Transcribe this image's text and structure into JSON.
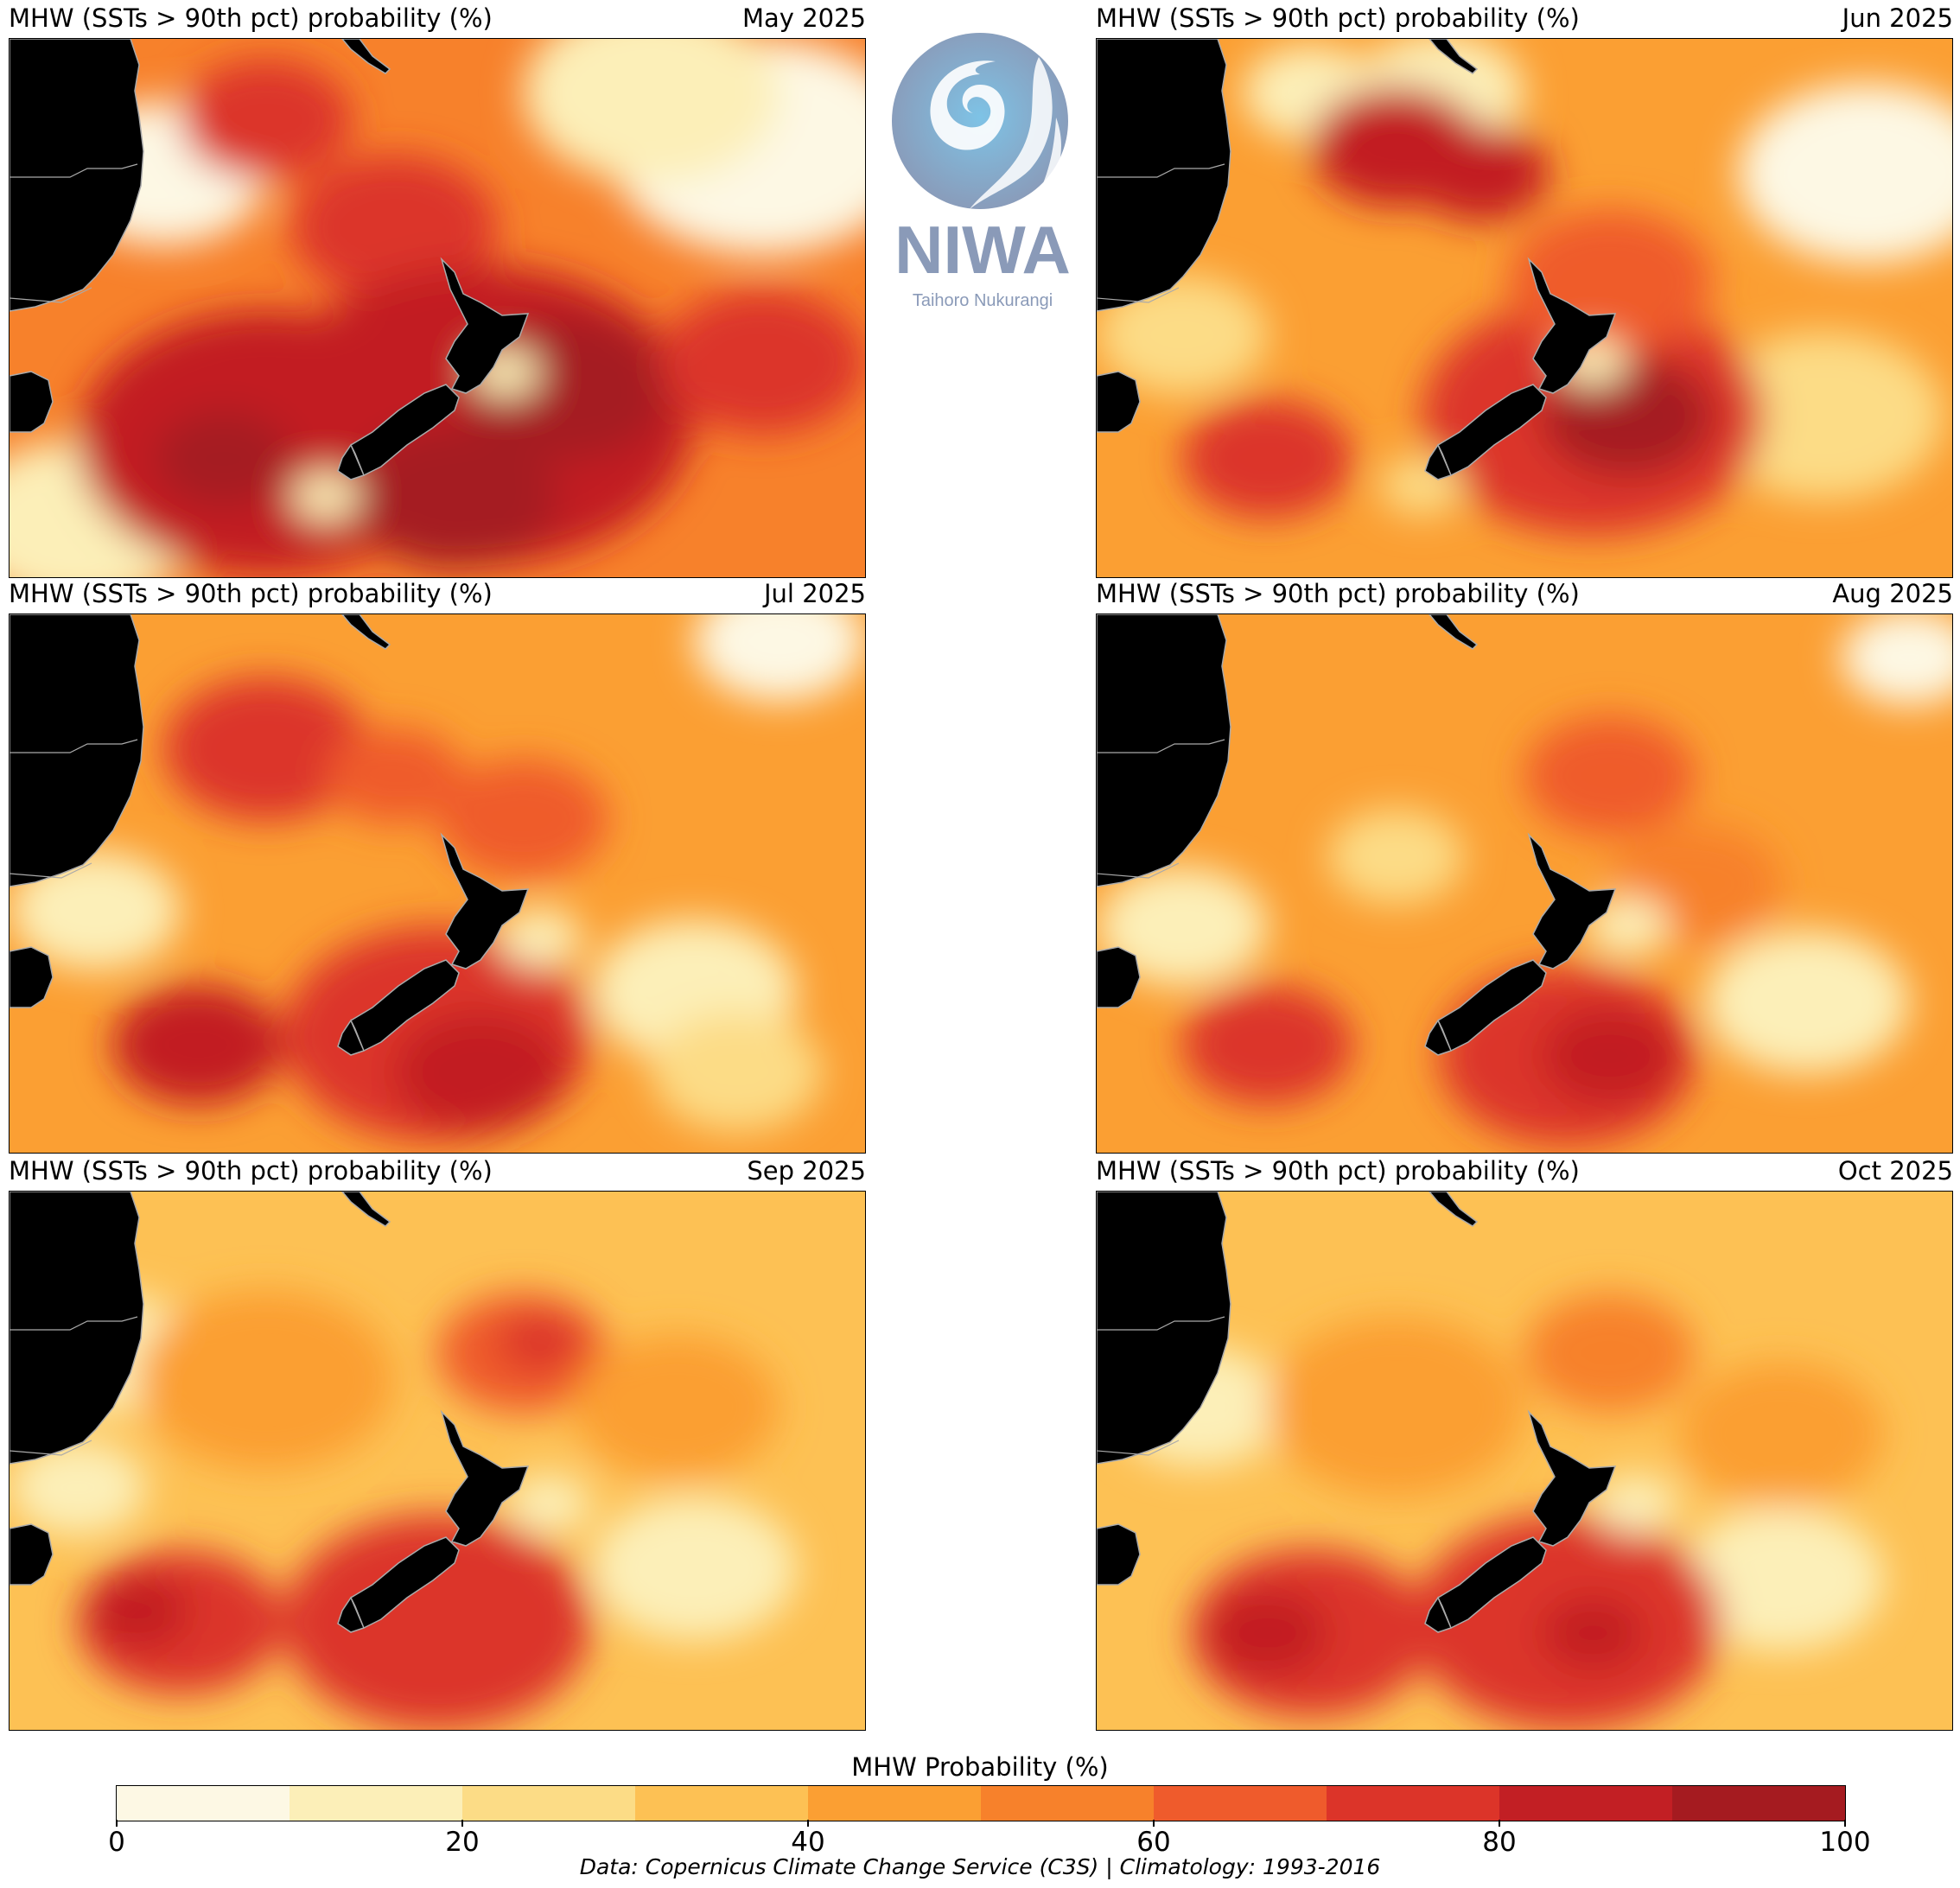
{
  "chart_data": {
    "type": "heatmap",
    "title": "MHW (SSTs > 90th pct) probability (%)",
    "colorbar": {
      "label": "MHW Probability (%)",
      "range": [
        0,
        100
      ],
      "levels": [
        0,
        10,
        20,
        30,
        40,
        50,
        60,
        70,
        80,
        90,
        100
      ],
      "ticks": [
        0,
        20,
        40,
        60,
        80,
        100
      ],
      "colors": [
        "#fdf8e4",
        "#fcefb8",
        "#fcdc86",
        "#fdc154",
        "#fb9f33",
        "#f7812b",
        "#ef5b2c",
        "#dc3429",
        "#c21f24",
        "#a51b20"
      ]
    },
    "region": "Tasman Sea / New Zealand / Southwest Pacific",
    "panels": [
      {
        "id": "may",
        "title": "MHW (SSTs > 90th pct) probability (%)",
        "month": "May 2025",
        "base": "#f7812b",
        "summary": "Widespread 70-100% south and east of NZ; 0-20% NW Tasman and far NE",
        "blobs": [
          [
            0.18,
            0.25,
            0.12,
            "#fdf8e4"
          ],
          [
            0.88,
            0.2,
            0.18,
            "#fdf8e4"
          ],
          [
            0.75,
            0.1,
            0.15,
            "#fcefb8"
          ],
          [
            0.08,
            0.9,
            0.14,
            "#fcefb8"
          ],
          [
            0.3,
            0.15,
            0.1,
            "#dc3429"
          ],
          [
            0.45,
            0.35,
            0.12,
            "#dc3429"
          ],
          [
            0.3,
            0.75,
            0.22,
            "#c21f24"
          ],
          [
            0.55,
            0.7,
            0.25,
            "#c21f24"
          ],
          [
            0.65,
            0.65,
            0.12,
            "#a51b20"
          ],
          [
            0.52,
            0.85,
            0.12,
            "#a51b20"
          ],
          [
            0.25,
            0.78,
            0.08,
            "#a51b20"
          ],
          [
            0.88,
            0.6,
            0.12,
            "#dc3429"
          ],
          [
            0.58,
            0.62,
            0.04,
            "#fcefb8"
          ],
          [
            0.37,
            0.85,
            0.04,
            "#fcefb8"
          ]
        ]
      },
      {
        "id": "jun",
        "title": "MHW (SSTs > 90th pct) probability (%)",
        "month": "Jun 2025",
        "base": "#fb9f33",
        "summary": "60-90% band south of NZ and NW Tasman; 0-30% east and NW",
        "blobs": [
          [
            0.9,
            0.25,
            0.15,
            "#fdf8e4"
          ],
          [
            0.25,
            0.1,
            0.08,
            "#fcefb8"
          ],
          [
            0.4,
            0.1,
            0.1,
            "#fcefb8"
          ],
          [
            0.1,
            0.55,
            0.1,
            "#fcdc86"
          ],
          [
            0.85,
            0.7,
            0.14,
            "#fcdc86"
          ],
          [
            0.35,
            0.2,
            0.1,
            "#c21f24"
          ],
          [
            0.45,
            0.25,
            0.08,
            "#c21f24"
          ],
          [
            0.58,
            0.7,
            0.2,
            "#dc3429"
          ],
          [
            0.62,
            0.7,
            0.1,
            "#a51b20"
          ],
          [
            0.2,
            0.78,
            0.1,
            "#dc3429"
          ],
          [
            0.6,
            0.45,
            0.12,
            "#ef5b2c"
          ],
          [
            0.58,
            0.6,
            0.04,
            "#fcefb8"
          ],
          [
            0.38,
            0.83,
            0.05,
            "#fcdc86"
          ]
        ]
      },
      {
        "id": "jul",
        "title": "MHW (SSTs > 90th pct) probability (%)",
        "month": "Jul 2025",
        "base": "#fb9f33",
        "summary": "60-80% south and west of NZ, central Tasman; 10-30% east of NZ and NE",
        "blobs": [
          [
            0.9,
            0.05,
            0.1,
            "#fdf8e4"
          ],
          [
            0.1,
            0.55,
            0.1,
            "#fcefb8"
          ],
          [
            0.8,
            0.7,
            0.12,
            "#fcefb8"
          ],
          [
            0.85,
            0.85,
            0.1,
            "#fcdc86"
          ],
          [
            0.3,
            0.25,
            0.12,
            "#dc3429"
          ],
          [
            0.45,
            0.3,
            0.08,
            "#ef5b2c"
          ],
          [
            0.6,
            0.38,
            0.1,
            "#ef5b2c"
          ],
          [
            0.5,
            0.78,
            0.18,
            "#dc3429"
          ],
          [
            0.22,
            0.8,
            0.1,
            "#c21f24"
          ],
          [
            0.55,
            0.85,
            0.1,
            "#c21f24"
          ],
          [
            0.62,
            0.6,
            0.05,
            "#fcefb8"
          ]
        ]
      },
      {
        "id": "aug",
        "title": "MHW (SSTs > 90th pct) probability (%)",
        "month": "Aug 2025",
        "base": "#fb9f33",
        "summary": "60-80% south of NZ; 10-30% east of NZ and Tasman coast",
        "blobs": [
          [
            0.95,
            0.08,
            0.08,
            "#fdf8e4"
          ],
          [
            0.1,
            0.58,
            0.1,
            "#fcefb8"
          ],
          [
            0.83,
            0.72,
            0.12,
            "#fcefb8"
          ],
          [
            0.35,
            0.45,
            0.08,
            "#fcdc86"
          ],
          [
            0.6,
            0.3,
            0.1,
            "#ef5b2c"
          ],
          [
            0.7,
            0.5,
            0.1,
            "#f7812b"
          ],
          [
            0.55,
            0.82,
            0.15,
            "#dc3429"
          ],
          [
            0.6,
            0.82,
            0.08,
            "#c21f24"
          ],
          [
            0.2,
            0.8,
            0.1,
            "#dc3429"
          ],
          [
            0.62,
            0.58,
            0.05,
            "#fcefb8"
          ]
        ]
      },
      {
        "id": "sep",
        "title": "MHW (SSTs > 90th pct) probability (%)",
        "month": "Sep 2025",
        "base": "#fdc154",
        "summary": "60-80% south of NZ and SW; 0-30% east of NZ and east Australian coast",
        "blobs": [
          [
            0.12,
            0.3,
            0.1,
            "#fcefb8"
          ],
          [
            0.08,
            0.55,
            0.08,
            "#fcefb8"
          ],
          [
            0.8,
            0.7,
            0.12,
            "#fcefb8"
          ],
          [
            0.6,
            0.3,
            0.1,
            "#ef5b2c"
          ],
          [
            0.62,
            0.28,
            0.05,
            "#dc3429"
          ],
          [
            0.3,
            0.35,
            0.15,
            "#fb9f33"
          ],
          [
            0.5,
            0.8,
            0.18,
            "#dc3429"
          ],
          [
            0.2,
            0.8,
            0.12,
            "#dc3429"
          ],
          [
            0.15,
            0.78,
            0.06,
            "#c21f24"
          ],
          [
            0.63,
            0.58,
            0.05,
            "#fcefb8"
          ],
          [
            0.78,
            0.4,
            0.12,
            "#fb9f33"
          ]
        ]
      },
      {
        "id": "oct",
        "title": "MHW (SSTs > 90th pct) probability (%)",
        "month": "Oct 2025",
        "base": "#fdc154",
        "summary": "70-80% south of NZ and SW; 10-30% east of NZ and Tasman coast",
        "blobs": [
          [
            0.12,
            0.4,
            0.1,
            "#fcefb8"
          ],
          [
            0.8,
            0.72,
            0.12,
            "#fcefb8"
          ],
          [
            0.6,
            0.3,
            0.1,
            "#f7812b"
          ],
          [
            0.35,
            0.4,
            0.15,
            "#fb9f33"
          ],
          [
            0.55,
            0.8,
            0.18,
            "#dc3429"
          ],
          [
            0.25,
            0.82,
            0.14,
            "#dc3429"
          ],
          [
            0.2,
            0.82,
            0.07,
            "#c21f24"
          ],
          [
            0.58,
            0.82,
            0.06,
            "#c21f24"
          ],
          [
            0.63,
            0.58,
            0.05,
            "#fcefb8"
          ],
          [
            0.8,
            0.45,
            0.12,
            "#fb9f33"
          ]
        ]
      }
    ]
  },
  "logo": {
    "name": "NIWA",
    "subtitle": "Taihoro Nukurangi",
    "color": "#8a9ab8",
    "accent": "#7ec3e6"
  },
  "colorbar": {
    "title": "MHW Probability (%)",
    "tick_labels": [
      "0",
      "20",
      "40",
      "60",
      "80",
      "100"
    ]
  },
  "credit": "Data: Copernicus Climate Change Service (C3S) | Climatology: 1993-2016"
}
